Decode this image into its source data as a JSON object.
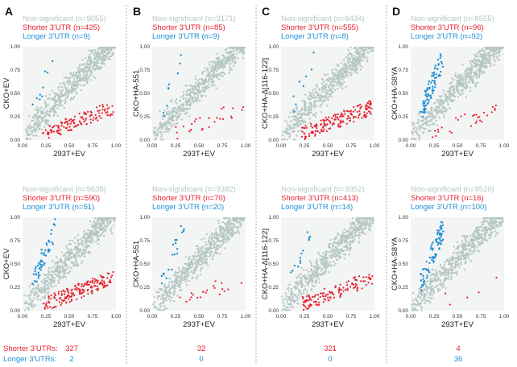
{
  "colors": {
    "nonsig": "#b5c7c3",
    "shorter": "#e8202f",
    "longer": "#1e8fd6",
    "divider": "#999999"
  },
  "footer": {
    "shorter_label": "Shorter 3'UTRs:",
    "longer_label": "Longer 3'UTRs:",
    "shorter_counts": [
      "327",
      "32",
      "321",
      "4"
    ],
    "longer_counts": [
      "2",
      "0",
      "0",
      "36"
    ]
  },
  "chart_data": [
    {
      "type": "scatter",
      "panel": "A",
      "row": "top",
      "xlabel": "293T+EV",
      "ylabel": "CKO+EV",
      "xlim": [
        0,
        1
      ],
      "ylim": [
        0,
        1
      ],
      "x_ticks": [
        "0.00",
        "0.25",
        "0.50",
        "0.75",
        "1.00"
      ],
      "y_ticks": [
        "0.00",
        "0.25",
        "0.50",
        "0.75",
        "1.00"
      ],
      "legend": [
        "Non-significant (n=9055)",
        "Shorter 3'UTR (n=425)",
        "Longer 3'UTR (n=9)"
      ],
      "series": [
        {
          "name": "Non-significant",
          "n": 9055
        },
        {
          "name": "Shorter 3'UTR",
          "n": 425
        },
        {
          "name": "Longer 3'UTR",
          "n": 9
        }
      ]
    },
    {
      "type": "scatter",
      "panel": "B",
      "row": "top",
      "xlabel": "293T+EV",
      "ylabel": "CKO+HA-551",
      "xlim": [
        0,
        1
      ],
      "ylim": [
        0,
        1
      ],
      "x_ticks": [
        "0.00",
        "0.25",
        "0.50",
        "0.75",
        "1.00"
      ],
      "y_ticks": [
        "0.00",
        "0.25",
        "0.50",
        "0.75",
        "1.00"
      ],
      "legend": [
        "Non-significant (n=9171)",
        "Shorter 3'UTR (n=85)",
        "Longer 3'UTR (n=9)"
      ],
      "series": [
        {
          "name": "Non-significant",
          "n": 9171
        },
        {
          "name": "Shorter 3'UTR",
          "n": 85
        },
        {
          "name": "Longer 3'UTR",
          "n": 9
        }
      ]
    },
    {
      "type": "scatter",
      "panel": "C",
      "row": "top",
      "xlabel": "293T+EV",
      "ylabel": "CKO+HA-Δ[116-122]",
      "xlim": [
        0,
        1
      ],
      "ylim": [
        0,
        1
      ],
      "x_ticks": [
        "0.00",
        "0.25",
        "0.50",
        "0.75",
        "1.00"
      ],
      "y_ticks": [
        "0.00",
        "0.25",
        "0.50",
        "0.75",
        "1.00"
      ],
      "legend": [
        "Non-significant (n=8434)",
        "Shorter 3'UTR (n=555)",
        "Longer 3'UTR (n=8)"
      ],
      "series": [
        {
          "name": "Non-significant",
          "n": 8434
        },
        {
          "name": "Shorter 3'UTR",
          "n": 555
        },
        {
          "name": "Longer 3'UTR",
          "n": 8
        }
      ]
    },
    {
      "type": "scatter",
      "panel": "D",
      "row": "top",
      "xlabel": "293T+EV",
      "ylabel": "CKO+HA-S8YA",
      "xlim": [
        0,
        1
      ],
      "ylim": [
        0,
        1
      ],
      "x_ticks": [
        "0.00",
        "0.25",
        "0.50",
        "0.75",
        "1.00"
      ],
      "y_ticks": [
        "0.00",
        "0.25",
        "0.50",
        "0.75",
        "1.00"
      ],
      "legend": [
        "Non-significant (n=8555)",
        "Shorter 3'UTR (n=96)",
        "Longer 3'UTR (n=92)"
      ],
      "series": [
        {
          "name": "Non-significant",
          "n": 8555
        },
        {
          "name": "Shorter 3'UTR",
          "n": 96
        },
        {
          "name": "Longer 3'UTR",
          "n": 92
        }
      ]
    },
    {
      "type": "scatter",
      "panel": "A",
      "row": "bottom",
      "xlabel": "293T+EV",
      "ylabel": "CKO+EV",
      "xlim": [
        0,
        1
      ],
      "ylim": [
        0,
        1
      ],
      "x_ticks": [
        "0.00",
        "0.25",
        "0.50",
        "0.75",
        "1.00"
      ],
      "y_ticks": [
        "0.00",
        "0.25",
        "0.50",
        "0.75",
        "1.00"
      ],
      "legend": [
        "Non-significant (n=9638)",
        "Shorter 3'UTR (n=590)",
        "Longer 3'UTR (n=51)"
      ],
      "series": [
        {
          "name": "Non-significant",
          "n": 9638
        },
        {
          "name": "Shorter 3'UTR",
          "n": 590
        },
        {
          "name": "Longer 3'UTR",
          "n": 51
        }
      ]
    },
    {
      "type": "scatter",
      "panel": "B",
      "row": "bottom",
      "xlabel": "293T+EV",
      "ylabel": "CKO+HA-551",
      "xlim": [
        0,
        1
      ],
      "ylim": [
        0,
        1
      ],
      "x_ticks": [
        "0.00",
        "0.25",
        "0.50",
        "0.75",
        "1.00"
      ],
      "y_ticks": [
        "0.00",
        "0.25",
        "0.50",
        "0.75",
        "1.00"
      ],
      "legend": [
        "Non-significant (n=9382)",
        "Shorter 3'UTR (n=70)",
        "Longer 3'UTR (n=20)"
      ],
      "series": [
        {
          "name": "Non-significant",
          "n": 9382
        },
        {
          "name": "Shorter 3'UTR",
          "n": 70
        },
        {
          "name": "Longer 3'UTR",
          "n": 20
        }
      ]
    },
    {
      "type": "scatter",
      "panel": "C",
      "row": "bottom",
      "xlabel": "293T+EV",
      "ylabel": "CKO+HA-Δ[116-122]",
      "xlim": [
        0,
        1
      ],
      "ylim": [
        0,
        1
      ],
      "x_ticks": [
        "0.00",
        "0.25",
        "0.50",
        "0.75",
        "1.00"
      ],
      "y_ticks": [
        "0.00",
        "0.25",
        "0.50",
        "0.75",
        "1.00"
      ],
      "legend": [
        "Non-significant (n=9352)",
        "Shorter 3'UTR (n=413)",
        "Longer 3'UTR (n=14)"
      ],
      "series": [
        {
          "name": "Non-significant",
          "n": 9352
        },
        {
          "name": "Shorter 3'UTR",
          "n": 413
        },
        {
          "name": "Longer 3'UTR",
          "n": 14
        }
      ]
    },
    {
      "type": "scatter",
      "panel": "D",
      "row": "bottom",
      "xlabel": "293T+EV",
      "ylabel": "CKO+HA-S8YA",
      "xlim": [
        0,
        1
      ],
      "ylim": [
        0,
        1
      ],
      "x_ticks": [
        "0.00",
        "0.25",
        "0.50",
        "0.75",
        "1.00"
      ],
      "y_ticks": [
        "0.00",
        "0.25",
        "0.50",
        "0.75",
        "1.00"
      ],
      "legend": [
        "Non-significant (n=9520)",
        "Shorter 3'UTR (n=16)",
        "Longer 3'UTR (n=100)"
      ],
      "series": [
        {
          "name": "Non-significant",
          "n": 9520
        },
        {
          "name": "Shorter 3'UTR",
          "n": 16
        },
        {
          "name": "Longer 3'UTR",
          "n": 100
        }
      ]
    }
  ]
}
